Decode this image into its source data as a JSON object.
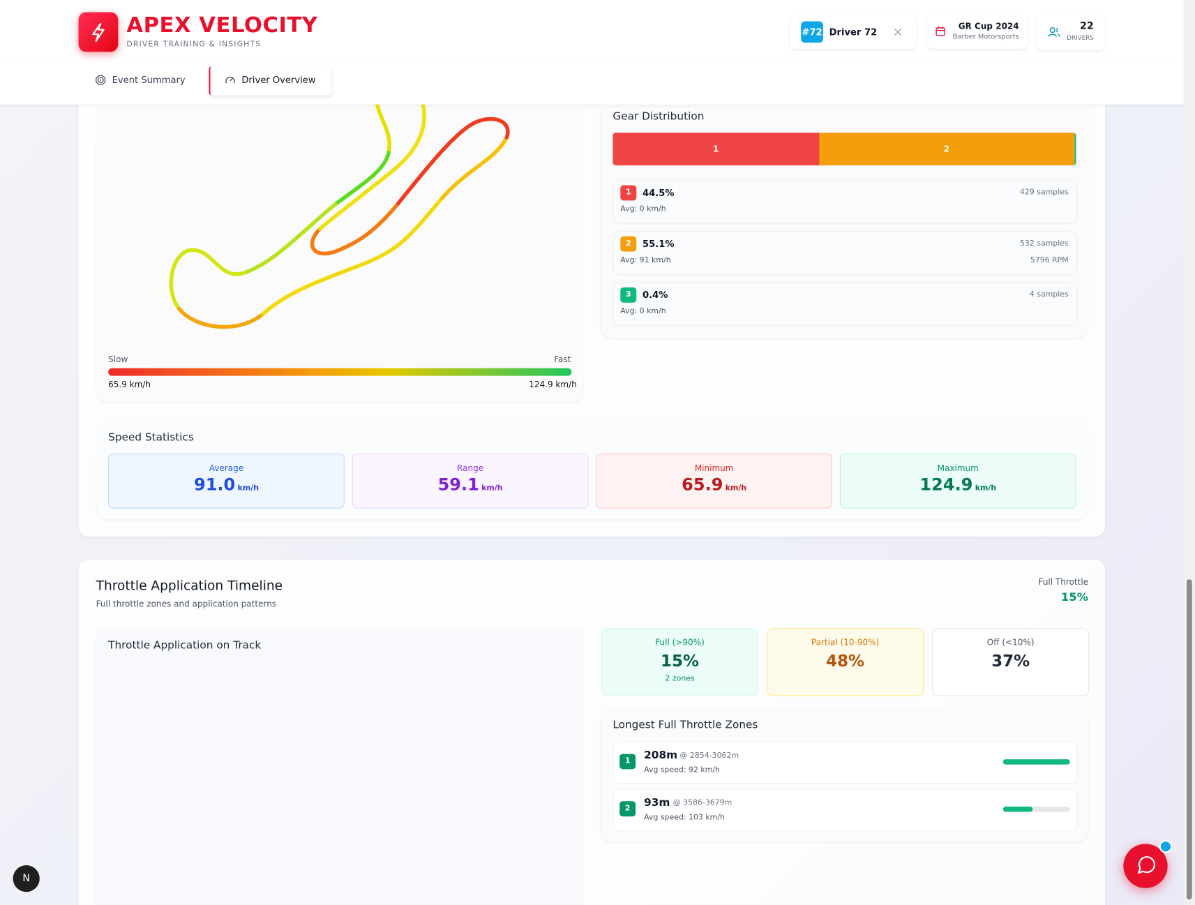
{
  "header": {
    "brand": "APEX VELOCITY",
    "tagline": "DRIVER TRAINING & INSIGHTS",
    "driver_badge": "#72",
    "driver_name": "Driver 72",
    "event": "GR Cup 2024",
    "venue": "Barber Motorsports",
    "driver_count": "22",
    "driver_count_label": "DRIVERS"
  },
  "tabs": [
    "Event Summary",
    "Driver Overview"
  ],
  "speed_map": {
    "slow_label": "Slow",
    "fast_label": "Fast",
    "min_label": "65.9 km/h",
    "max_label": "124.9 km/h"
  },
  "gear_distribution": {
    "title": "Gear Distribution",
    "gears": [
      {
        "gear": "1",
        "share": 44.5,
        "share_label": "44.5%",
        "samples": "429 samples",
        "avg": "Avg: 0 km/h",
        "color": "#ef4444"
      },
      {
        "gear": "2",
        "share": 55.1,
        "share_label": "55.1%",
        "samples": "532 samples",
        "avg": "Avg: 91 km/h",
        "rpm": "5796 RPM",
        "color": "#f59e0b"
      },
      {
        "gear": "3",
        "share": 0.4,
        "share_label": "0.4%",
        "samples": "4 samples",
        "avg": "Avg: 0 km/h",
        "color": "#10b981"
      }
    ]
  },
  "speed_statistics": {
    "title": "Speed Statistics",
    "cards": [
      {
        "label": "Average",
        "value": "91.0",
        "unit": "km/h"
      },
      {
        "label": "Range",
        "value": "59.1",
        "unit": "km/h"
      },
      {
        "label": "Minimum",
        "value": "65.9",
        "unit": "km/h"
      },
      {
        "label": "Maximum",
        "value": "124.9",
        "unit": "km/h"
      }
    ]
  },
  "throttle": {
    "title": "Throttle Application Timeline",
    "subtitle": "Full throttle zones and application patterns",
    "summary_label": "Full Throttle",
    "summary_value": "15%",
    "map_title": "Throttle Application on Track",
    "cards": [
      {
        "label": "Full (>90%)",
        "value": "15%",
        "note": "2 zones"
      },
      {
        "label": "Partial (10-90%)",
        "value": "48%"
      },
      {
        "label": "Off (<10%)",
        "value": "37%"
      }
    ],
    "zones_title": "Longest Full Throttle Zones",
    "zones": [
      {
        "rank": "1",
        "length": 208,
        "length_label": "208m",
        "range": "@ 2854-3062m",
        "avg": "Avg speed: 92 km/h"
      },
      {
        "rank": "2",
        "length": 93,
        "length_label": "93m",
        "range": "@ 3586-3679m",
        "avg": "Avg speed: 103 km/h"
      }
    ]
  },
  "dev_badge": "N"
}
